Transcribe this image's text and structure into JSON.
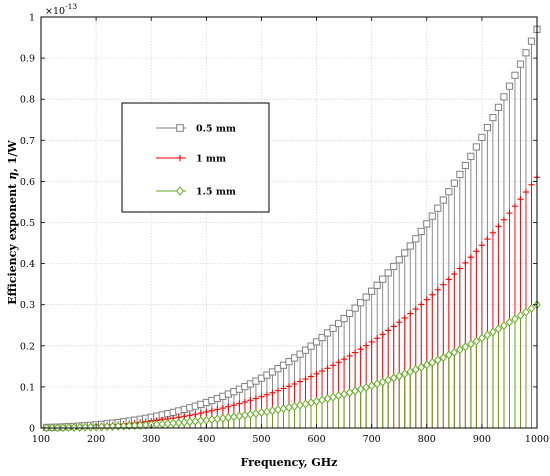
{
  "chart_data": {
    "type": "stem",
    "title": "",
    "xlabel": "Frequency, GHz",
    "ylabel_prefix": "Efficiency exponent ",
    "ylabel_symbol": "η",
    "ylabel_suffix": ", 1/W",
    "y_multiplier": "×10",
    "y_multiplier_exp": "-13",
    "xlim": [
      100,
      1000
    ],
    "ylim": [
      0,
      1
    ],
    "xticks": [
      100,
      200,
      300,
      400,
      500,
      600,
      700,
      800,
      900,
      1000
    ],
    "yticks": [
      0,
      0.1,
      0.2,
      0.3,
      0.4,
      0.5,
      0.6,
      0.7,
      0.8,
      0.9,
      1
    ],
    "grid": true,
    "legend_position": "upper-left",
    "x_start": 110,
    "x_end": 1000,
    "x_step": 10,
    "exponent": 3,
    "series": [
      {
        "name": "0.5 mm",
        "color": "#808080",
        "marker": "square",
        "value_at_1000": 0.97,
        "marker_every": 1
      },
      {
        "name": "1 mm",
        "color": "#ff0000",
        "marker": "plus",
        "value_at_1000": 0.61,
        "marker_every": 1
      },
      {
        "name": "1.5 mm",
        "color": "#66aa22",
        "marker": "diamond",
        "value_at_1000": 0.3,
        "marker_every": 1
      }
    ]
  }
}
